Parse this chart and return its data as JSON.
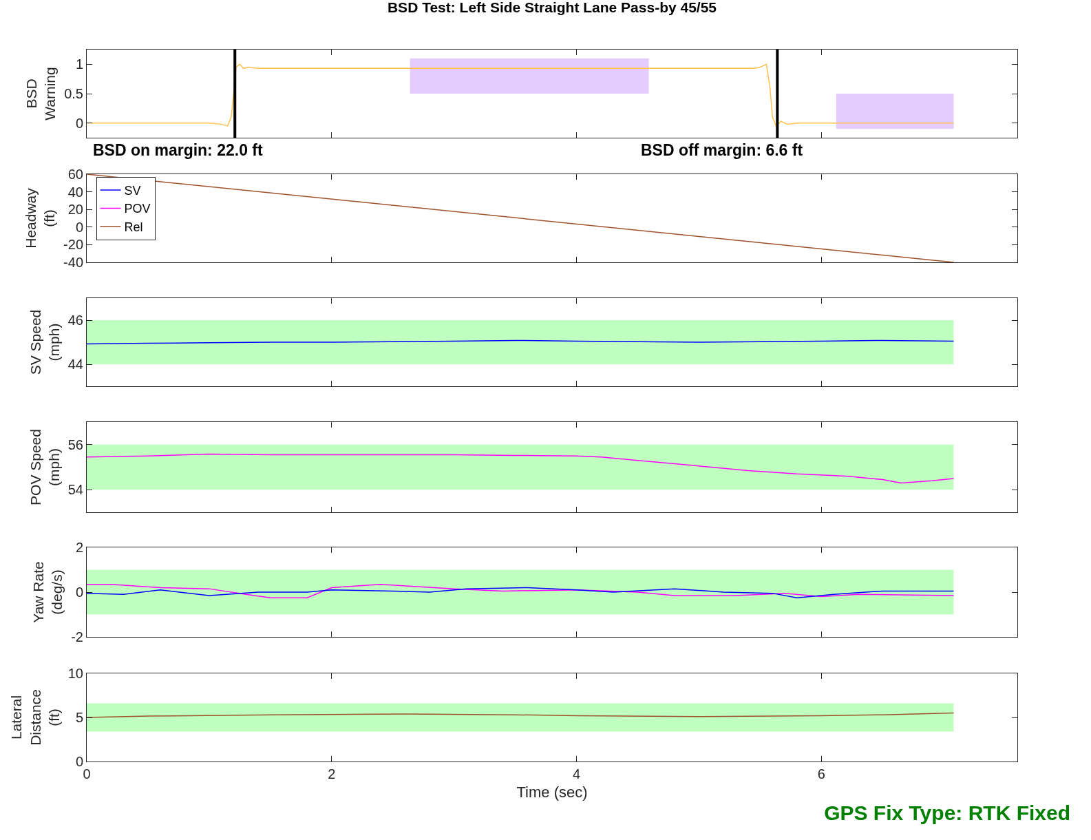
{
  "chart_data": [
    {
      "type": "line",
      "title": "BSD Test: Left Side Straight Lane Pass-by 45/55",
      "ylabel": "BSD\nWarning",
      "xlim": [
        0,
        7.6
      ],
      "xticks": [
        0,
        2,
        4,
        6
      ],
      "ylim": [
        -0.25,
        1.25
      ],
      "yticks": [
        0,
        0.5,
        1
      ],
      "tick_labels": "y",
      "grid": false,
      "legend": false,
      "marker": "none",
      "series": [
        {
          "color": "#e5ccff",
          "x": [
            2.64,
            4.59
          ],
          "values": [
            null,
            null
          ],
          "lower": [
            0.5,
            0.5
          ],
          "upper": [
            1.1,
            1.1
          ]
        },
        {
          "color": "#e5ccff",
          "x": [
            6.12,
            7.08
          ],
          "values": [
            null,
            null
          ],
          "lower": [
            -0.1,
            -0.1
          ],
          "upper": [
            0.5,
            0.5
          ]
        },
        {
          "color": "#ffc04d",
          "x": [
            0,
            1.0,
            1.1,
            1.15,
            1.18,
            1.2,
            1.22,
            1.25,
            1.28,
            1.32,
            1.4,
            5.45,
            5.5,
            5.55,
            5.58,
            5.6,
            5.63,
            5.67,
            5.72,
            5.8,
            7.08
          ],
          "values": [
            0,
            0,
            -0.02,
            -0.05,
            0.1,
            0.5,
            0.95,
            1.0,
            0.93,
            0.95,
            0.93,
            0.93,
            0.95,
            1.0,
            0.6,
            0.1,
            -0.05,
            0.03,
            -0.02,
            0,
            0
          ]
        }
      ],
      "ref_lines": [
        {
          "axis": "x",
          "value": 1.21,
          "color": "#000000"
        },
        {
          "axis": "x",
          "value": 5.64,
          "color": "#000000"
        }
      ],
      "annotations": [
        "BSD on margin: 22.0 ft",
        "BSD off margin: 6.6 ft"
      ]
    },
    {
      "type": "line",
      "ylabel": "Headway\n(ft)",
      "xlim": [
        0,
        7.6
      ],
      "xticks": [
        0,
        2,
        4,
        6
      ],
      "ylim": [
        -40,
        60
      ],
      "yticks": [
        -40,
        -20,
        0,
        20,
        40,
        60
      ],
      "tick_labels": "y",
      "grid": false,
      "legend": "top left",
      "marker": "none",
      "series": [
        {
          "name": "SV",
          "color": "#0000ff"
        },
        {
          "name": "POV",
          "color": "#ff00ff"
        },
        {
          "name": "Rel",
          "color": "#a0522d",
          "x": [
            0,
            7.08
          ],
          "values": [
            60,
            -40
          ]
        }
      ]
    },
    {
      "type": "line",
      "ylabel": "SV Speed\n(mph)",
      "xlim": [
        0,
        7.6
      ],
      "xticks": [
        0,
        2,
        4,
        6
      ],
      "ylim": [
        43,
        47
      ],
      "yticks": [
        44,
        46
      ],
      "tick_labels": "y",
      "grid": false,
      "legend": false,
      "marker": "none",
      "series": [
        {
          "color": "#bfffbf",
          "x": [
            0,
            7.08
          ],
          "values": [
            null,
            null
          ],
          "lower": [
            44,
            44
          ],
          "upper": [
            46,
            46
          ]
        },
        {
          "color": "#0000ff",
          "x": [
            0,
            0.5,
            1,
            1.5,
            2,
            2.5,
            3,
            3.5,
            4,
            4.5,
            5,
            5.5,
            6,
            6.5,
            7.08
          ],
          "values": [
            44.92,
            44.95,
            44.98,
            45,
            45,
            45.02,
            45.05,
            45.08,
            45.05,
            45.02,
            45,
            45.02,
            45.05,
            45.08,
            45.05
          ]
        }
      ]
    },
    {
      "type": "line",
      "ylabel": "POV Speed\n(mph)",
      "xlim": [
        0,
        7.6
      ],
      "xticks": [
        0,
        2,
        4,
        6
      ],
      "ylim": [
        53,
        57
      ],
      "yticks": [
        54,
        56
      ],
      "tick_labels": "y",
      "grid": false,
      "legend": false,
      "marker": "none",
      "series": [
        {
          "color": "#bfffbf",
          "x": [
            0,
            7.08
          ],
          "values": [
            null,
            null
          ],
          "lower": [
            54,
            54
          ],
          "upper": [
            56,
            56
          ]
        },
        {
          "color": "#ff00ff",
          "x": [
            0,
            0.5,
            1,
            1.5,
            2,
            2.5,
            3,
            3.5,
            4,
            4.2,
            4.5,
            4.8,
            5.1,
            5.4,
            5.8,
            6.2,
            6.5,
            6.65,
            6.9,
            7.08
          ],
          "values": [
            55.45,
            55.5,
            55.58,
            55.55,
            55.55,
            55.55,
            55.55,
            55.52,
            55.5,
            55.45,
            55.3,
            55.15,
            55,
            54.85,
            54.7,
            54.6,
            54.45,
            54.3,
            54.4,
            54.5
          ]
        }
      ]
    },
    {
      "type": "line",
      "ylabel": "Yaw Rate\n(deg/s)",
      "xlim": [
        0,
        7.6
      ],
      "xticks": [
        0,
        2,
        4,
        6
      ],
      "ylim": [
        -2,
        2
      ],
      "yticks": [
        -2,
        0,
        2
      ],
      "tick_labels": "y",
      "grid": false,
      "legend": false,
      "marker": "none",
      "series": [
        {
          "color": "#bfffbf",
          "x": [
            0,
            7.08
          ],
          "values": [
            null,
            null
          ],
          "lower": [
            -1,
            -1
          ],
          "upper": [
            1,
            1
          ]
        },
        {
          "color": "#ff00ff",
          "x": [
            0,
            0.2,
            0.6,
            1.0,
            1.3,
            1.5,
            1.8,
            2.0,
            2.4,
            2.7,
            3.0,
            3.4,
            4.0,
            4.5,
            4.8,
            5.3,
            5.7,
            6.0,
            6.3,
            7.08
          ],
          "values": [
            0.35,
            0.35,
            0.2,
            0.15,
            -0.1,
            -0.25,
            -0.25,
            0.2,
            0.35,
            0.25,
            0.15,
            0.05,
            0.1,
            0,
            -0.15,
            -0.15,
            -0.05,
            -0.2,
            -0.1,
            -0.15
          ]
        },
        {
          "color": "#0000ff",
          "x": [
            0,
            0.3,
            0.6,
            1.0,
            1.4,
            1.8,
            2.0,
            2.5,
            2.8,
            3.1,
            3.6,
            4.0,
            4.3,
            4.8,
            5.2,
            5.6,
            5.8,
            6.1,
            6.5,
            7.08
          ],
          "values": [
            -0.05,
            -0.1,
            0.1,
            -0.15,
            0,
            0,
            0.1,
            0.05,
            0,
            0.15,
            0.2,
            0.1,
            0,
            0.15,
            0,
            -0.05,
            -0.25,
            -0.1,
            0.05,
            0.05
          ]
        }
      ]
    },
    {
      "type": "line",
      "ylabel": "Lateral\nDistance\n(ft)",
      "xlabel": "Time (sec)",
      "xlim": [
        0,
        7.6
      ],
      "xticks": [
        0,
        2,
        4,
        6
      ],
      "ylim": [
        0,
        10
      ],
      "yticks": [
        0,
        5,
        10
      ],
      "grid": false,
      "legend": false,
      "marker": "none",
      "series": [
        {
          "color": "#bfffbf",
          "x": [
            0,
            7.08
          ],
          "values": [
            null,
            null
          ],
          "lower": [
            3.4,
            3.4
          ],
          "upper": [
            6.6,
            6.6
          ]
        },
        {
          "color": "#a0522d",
          "x": [
            0,
            0.5,
            1.5,
            2.6,
            3.5,
            4,
            5,
            6,
            6.5,
            7.08
          ],
          "values": [
            5,
            5.15,
            5.3,
            5.4,
            5.3,
            5.2,
            5.1,
            5.2,
            5.3,
            5.5
          ]
        }
      ],
      "annotations": [
        "GPS Fix Type: RTK Fixed"
      ]
    }
  ]
}
